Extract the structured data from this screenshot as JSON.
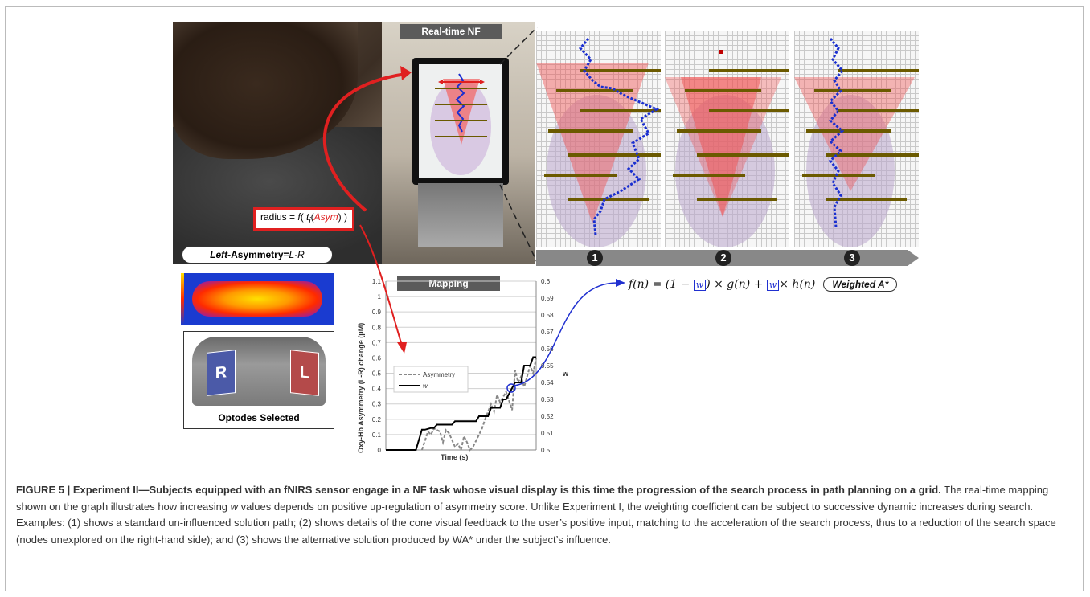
{
  "figure": {
    "labels": {
      "realtime_nf": "Real-time NF",
      "mapping": "Mapping",
      "radius_prefix": "radius = ",
      "radius_f": "f",
      "radius_open": "( ",
      "radius_t": "t",
      "radius_i": "i",
      "radius_paren": "(",
      "radius_asym": "Asym",
      "radius_close": ") )",
      "left_asym_left": "Left",
      "left_asym_rest": "-Asymmetry=",
      "left_asym_formula": "L-R",
      "optodes_selected": "Optodes Selected",
      "opt_r": "R",
      "opt_l": "L",
      "step1": "1",
      "step2": "2",
      "step3": "3"
    },
    "formula": {
      "lhs": "f(n) = (1 − ",
      "w1": "w",
      "mid": ") × g(n) + ",
      "w2": "w",
      "rhs": "× h(n)",
      "tag": "Weighted A*"
    },
    "colors": {
      "red_arrow": "#e02020",
      "blue_arrow": "#2030d0",
      "cone": "#f05050",
      "path": "#1a2fd0",
      "obstacle": "#6b5a00",
      "explored": "#c9b9d6"
    }
  },
  "chart_data": {
    "type": "line",
    "title": "",
    "xlabel": "Time (s)",
    "ylabel": "Oxy-Hb Asymmetry (L-R) change (μM)",
    "y2label": "w",
    "ylim": [
      0,
      1.1
    ],
    "y2lim": [
      0.5,
      0.6
    ],
    "yticks": [
      "1.1",
      "1",
      "0.9",
      "0.8",
      "0.7",
      "0.6",
      "0.5",
      "0.4",
      "0.3",
      "0.2",
      "0.1",
      "0"
    ],
    "y2ticks": [
      "0.6",
      "0.59",
      "0.58",
      "0.57",
      "0.56",
      "0.55",
      "0.54",
      "0.53",
      "0.52",
      "0.51",
      "0.5"
    ],
    "grid": true,
    "legend_position": "center-left",
    "series": [
      {
        "name": "Asymmetry",
        "style": "dashed",
        "color": "#888888",
        "x": [
          0.24,
          0.28,
          0.3,
          0.32,
          0.36,
          0.38,
          0.4,
          0.42,
          0.46,
          0.48,
          0.5,
          0.52,
          0.54,
          0.56,
          0.58,
          0.6,
          0.64,
          0.66,
          0.7,
          0.72,
          0.74,
          0.76,
          0.8,
          0.84,
          0.86,
          0.88,
          0.9,
          0.92,
          0.96,
          0.98,
          1.0
        ],
        "y": [
          0.0,
          0.12,
          0.1,
          0.14,
          0.12,
          0.05,
          0.13,
          0.11,
          0.02,
          0.04,
          0.0,
          0.09,
          0.05,
          0.0,
          0.02,
          0.06,
          0.14,
          0.2,
          0.3,
          0.25,
          0.36,
          0.31,
          0.38,
          0.26,
          0.52,
          0.44,
          0.48,
          0.41,
          0.55,
          0.5,
          0.6
        ]
      },
      {
        "name": "w",
        "style": "solid",
        "color": "#000000",
        "x": [
          0.0,
          0.2,
          0.24,
          0.26,
          0.3,
          0.32,
          0.34,
          0.36,
          0.44,
          0.46,
          0.6,
          0.62,
          0.68,
          0.7,
          0.76,
          0.78,
          0.8,
          0.86,
          0.9,
          0.92,
          0.96,
          0.98,
          1.0
        ],
        "y": [
          0.5,
          0.5,
          0.512,
          0.512,
          0.513,
          0.513,
          0.515,
          0.515,
          0.515,
          0.517,
          0.517,
          0.52,
          0.52,
          0.525,
          0.525,
          0.53,
          0.53,
          0.54,
          0.54,
          0.55,
          0.55,
          0.555,
          0.555
        ]
      }
    ]
  },
  "caption": {
    "title": "FIGURE 5 | Experiment II—Subjects equipped with an fNIRS sensor engage in a NF task whose visual display is this time the progression of the search process in path planning on a grid.",
    "body_1": " The real-time mapping shown on the graph illustrates how increasing ",
    "w": "w",
    "body_2": " values depends on positive up-regulation of asymmetry score. Unlike Experiment I, the weighting coefficient can be subject to successive dynamic increases during search. Examples: (1) shows a standard un-influenced solution path; (2) shows details of the cone visual feedback to the user’s positive input, matching to the acceleration of the search process, thus to a reduction of the search space (nodes unexplored on the right-hand side); and (3) shows the alternative solution produced by WA* under the subject’s influence."
  }
}
